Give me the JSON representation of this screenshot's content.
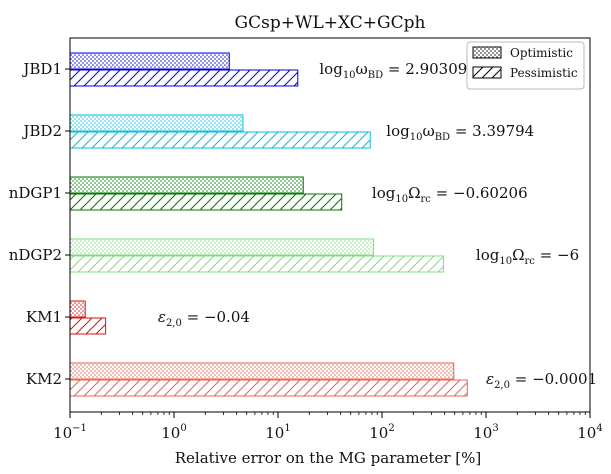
{
  "chart_data": {
    "type": "bar",
    "orientation": "horizontal",
    "title": "GCsp+WL+XC+GCph",
    "xlabel": "Relative error on the MG parameter [%]",
    "ylabel": "",
    "xscale": "log",
    "xlim": [
      0.1,
      10000
    ],
    "xticks": [
      {
        "value": 0.1,
        "base": "10",
        "exp": "−1"
      },
      {
        "value": 1,
        "base": "10",
        "exp": "0"
      },
      {
        "value": 10,
        "base": "10",
        "exp": "1"
      },
      {
        "value": 100,
        "base": "10",
        "exp": "2"
      },
      {
        "value": 1000,
        "base": "10",
        "exp": "3"
      },
      {
        "value": 10000,
        "base": "10",
        "exp": "4"
      }
    ],
    "legend": {
      "position": "top-right",
      "entries": [
        {
          "name": "Optimistic",
          "pattern": "dots"
        },
        {
          "name": "Pessimistic",
          "pattern": "hatch"
        }
      ]
    },
    "categories": [
      "JBD1",
      "JBD2",
      "nDGP1",
      "nDGP2",
      "KM1",
      "KM2"
    ],
    "colors": [
      "#0000e0",
      "#00bfe6",
      "#007a00",
      "#80e080",
      "#dd1010",
      "#f06050"
    ],
    "series": [
      {
        "name": "Optimistic",
        "values": [
          3.4,
          4.6,
          17.5,
          83,
          0.14,
          490
        ]
      },
      {
        "name": "Pessimistic",
        "values": [
          15.5,
          77,
          41,
          390,
          0.22,
          660
        ]
      }
    ],
    "annotations": [
      {
        "main": "log",
        "sub": "10",
        "sym": "ω",
        "symsub": "BD",
        "value": " = 2.90309",
        "anchor": 25
      },
      {
        "main": "log",
        "sub": "10",
        "sym": "ω",
        "symsub": "BD",
        "value": " = 3.39794",
        "anchor": 110
      },
      {
        "main": "log",
        "sub": "10",
        "sym": "Ω",
        "symsub": "rc",
        "value": " = −0.60206",
        "anchor": 80
      },
      {
        "main": "log",
        "sub": "10",
        "sym": "Ω",
        "symsub": "rc",
        "value": " = −6",
        "anchor": 800
      },
      {
        "main": "",
        "sub": "",
        "sym": "ε",
        "symsub": "2,0",
        "value": " = −0.04",
        "anchor": 0.7
      },
      {
        "main": "",
        "sub": "",
        "sym": "ε",
        "symsub": "2,0",
        "value": " = −0.0001",
        "anchor": 1000
      }
    ]
  }
}
